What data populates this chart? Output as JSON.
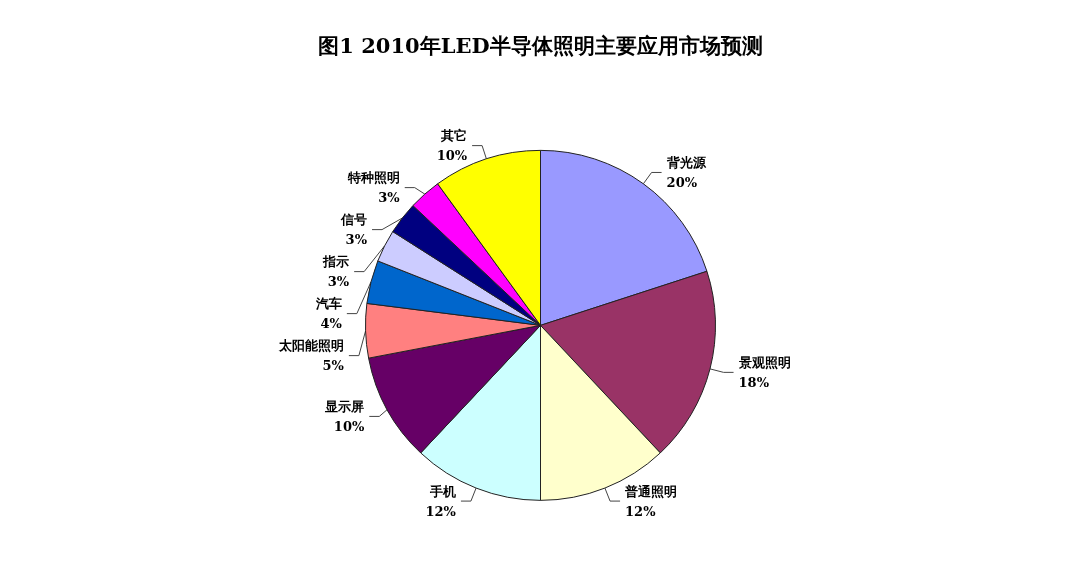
{
  "chart_data": {
    "type": "pie",
    "title": "图1 2010年LED半导体照明主要应用市场预测",
    "categories": [
      "背光源",
      "景观照明",
      "普通照明",
      "手机",
      "显示屏",
      "太阳能照明",
      "汽车",
      "指示",
      "信号",
      "特种照明",
      "其它"
    ],
    "values": [
      20,
      18,
      12,
      12,
      10,
      5,
      4,
      3,
      3,
      3,
      10
    ],
    "value_labels": [
      "20%",
      "18%",
      "12%",
      "12%",
      "10%",
      "5%",
      "4%",
      "3%",
      "3%",
      "3%",
      "10%"
    ],
    "colors": [
      "#9999ff",
      "#993366",
      "#ffffcc",
      "#ccffff",
      "#660066",
      "#ff8080",
      "#0066cc",
      "#ccccff",
      "#000080",
      "#ff00ff",
      "#ffff00"
    ]
  }
}
